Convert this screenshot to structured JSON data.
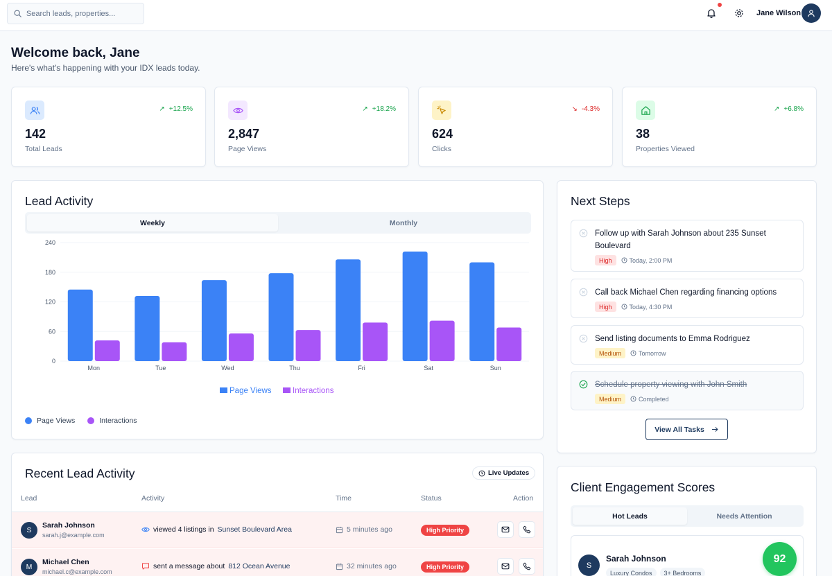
{
  "topbar": {
    "search_placeholder": "Search leads, properties...",
    "user_name": "Jane Wilson",
    "notification_dot_color": "#ef4444"
  },
  "welcome": {
    "title": "Welcome back, Jane",
    "subtitle": "Here's what's happening with your IDX leads today."
  },
  "stats": [
    {
      "icon": "users-icon",
      "value": "142",
      "label": "Total Leads",
      "delta": "+12.5%",
      "trend": "up",
      "color": "#3b82f6",
      "bg": "#dbeafe"
    },
    {
      "icon": "eye-icon",
      "value": "2,847",
      "label": "Page Views",
      "delta": "+18.2%",
      "trend": "up",
      "color": "#a855f7",
      "bg": "#f3e8ff"
    },
    {
      "icon": "cursor-click-icon",
      "value": "624",
      "label": "Clicks",
      "delta": "-4.3%",
      "trend": "down",
      "color": "#ca8a04",
      "bg": "#fef3c7"
    },
    {
      "icon": "home-icon",
      "value": "38",
      "label": "Properties Viewed",
      "delta": "+6.8%",
      "trend": "up",
      "color": "#16a34a",
      "bg": "#dcfce7"
    }
  ],
  "lead_activity": {
    "title": "Lead Activity",
    "tabs": [
      "Weekly",
      "Monthly"
    ],
    "active_tab": "Weekly",
    "legend": [
      "Page Views",
      "Interactions"
    ]
  },
  "chart_data": {
    "type": "bar",
    "categories": [
      "Mon",
      "Tue",
      "Wed",
      "Thu",
      "Fri",
      "Sat",
      "Sun"
    ],
    "series": [
      {
        "name": "Page Views",
        "values": [
          145,
          132,
          164,
          178,
          206,
          222,
          200
        ],
        "color": "#3b82f6"
      },
      {
        "name": "Interactions",
        "values": [
          42,
          38,
          56,
          63,
          78,
          82,
          68
        ],
        "color": "#a855f7"
      }
    ],
    "yticks": [
      0,
      60,
      120,
      180,
      240
    ],
    "ylim": [
      0,
      240
    ],
    "grid": true,
    "legend_position": "bottom"
  },
  "recent": {
    "title": "Recent Lead Activity",
    "live_label": "Live Updates",
    "columns": [
      "Lead",
      "Activity",
      "Time",
      "Status",
      "Action"
    ],
    "rows": [
      {
        "initial": "S",
        "name": "Sarah Johnson",
        "email": "sarah.j@example.com",
        "activity_icon": "eye-icon",
        "activity_prefix": "viewed 4 listings in",
        "activity_target": "Sunset Boulevard Area",
        "time": "5 minutes ago",
        "status": "High Priority"
      },
      {
        "initial": "M",
        "name": "Michael Chen",
        "email": "michael.c@example.com",
        "activity_icon": "message-icon",
        "activity_prefix": "sent a message about",
        "activity_target": "812 Ocean Avenue",
        "time": "32 minutes ago",
        "status": "High Priority"
      }
    ]
  },
  "next_steps": {
    "title": "Next Steps",
    "tasks": [
      {
        "text": "Follow up with Sarah Johnson about 235 Sunset Boulevard",
        "priority": "High",
        "when": "Today, 2:00 PM",
        "done": false
      },
      {
        "text": "Call back Michael Chen regarding financing options",
        "priority": "High",
        "when": "Today, 4:30 PM",
        "done": false
      },
      {
        "text": "Send listing documents to Emma Rodriguez",
        "priority": "Medium",
        "when": "Tomorrow",
        "done": false
      },
      {
        "text": "Schedule property viewing with John Smith",
        "priority": "Medium",
        "when": "Completed",
        "done": true
      }
    ],
    "view_all_label": "View All Tasks"
  },
  "engagement": {
    "title": "Client Engagement Scores",
    "tabs": [
      "Hot Leads",
      "Needs Attention"
    ],
    "active_tab": "Hot Leads",
    "client": {
      "initial": "S",
      "name": "Sarah Johnson",
      "tags": [
        "Luxury Condos",
        "3+ Bedrooms"
      ],
      "score": "92"
    }
  }
}
